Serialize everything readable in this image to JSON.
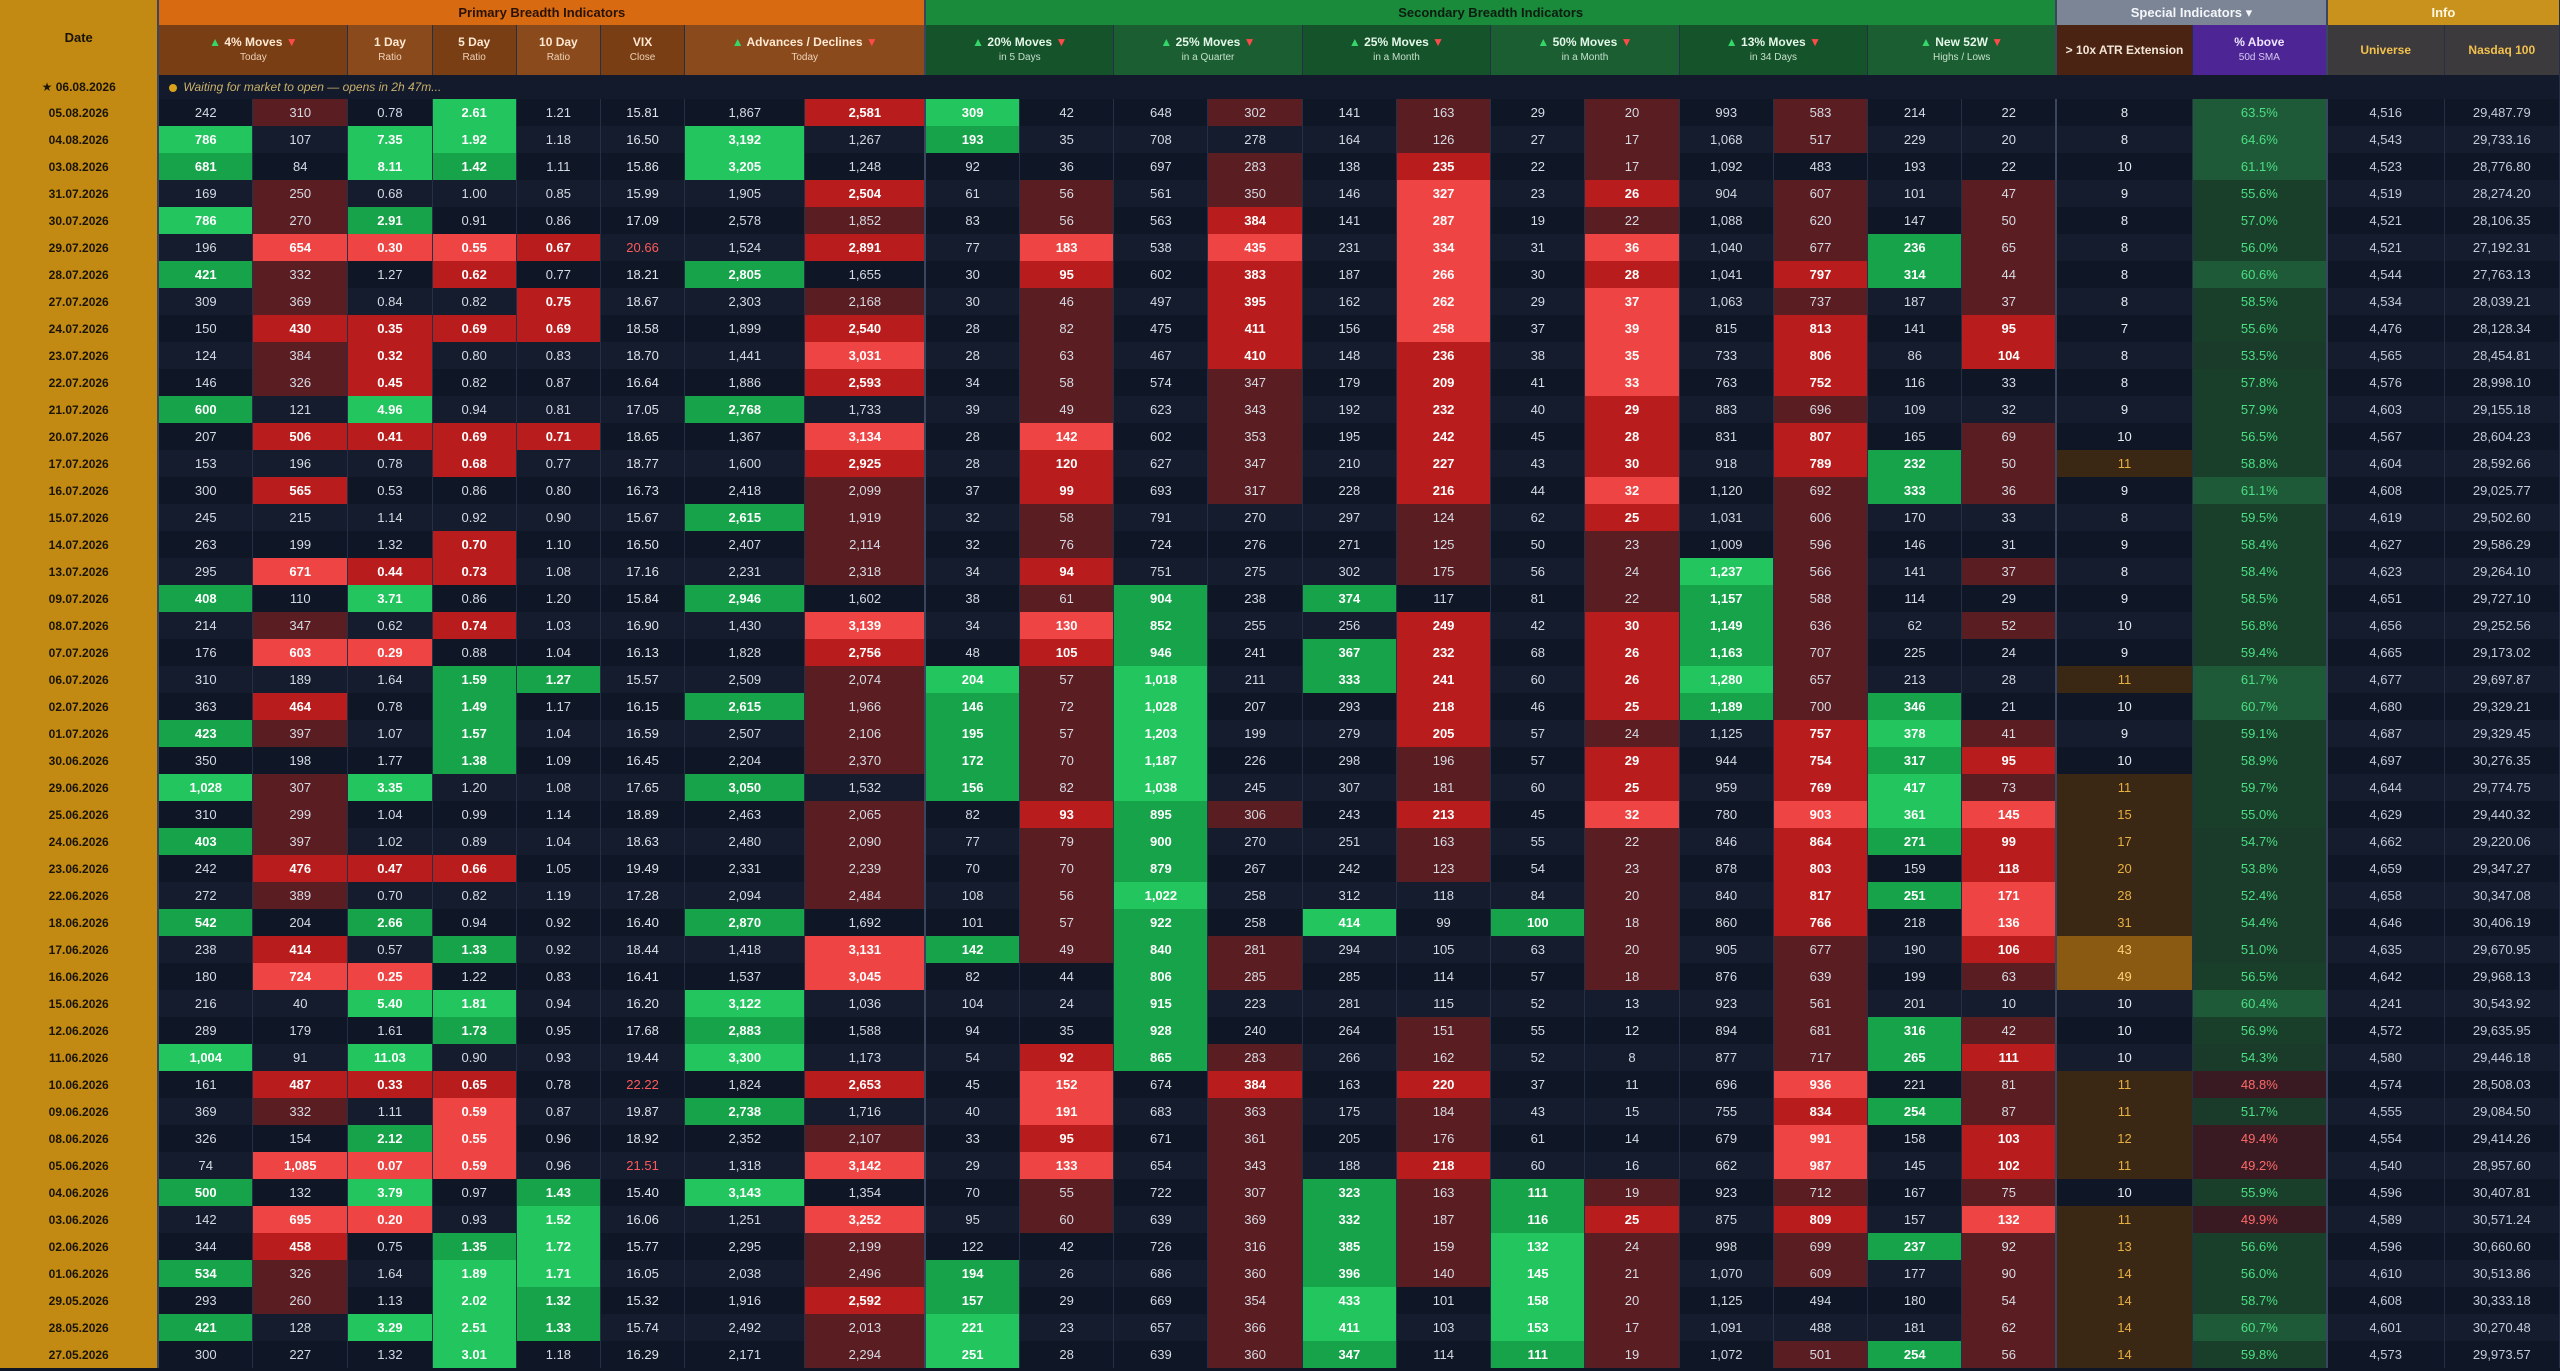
{
  "groups": {
    "date": "Date",
    "primary": "Primary Breadth Indicators",
    "secondary": "Secondary Breadth Indicators",
    "special": "Special Indicators",
    "special_caret": "▾",
    "info": "Info"
  },
  "headers": {
    "moves4": "4% Moves",
    "moves4_sub": "Today",
    "ratio1": "1 Day",
    "ratio1_sub": "Ratio",
    "ratio5": "5 Day",
    "ratio5_sub": "Ratio",
    "ratio10": "10 Day",
    "ratio10_sub": "Ratio",
    "vix": "VIX",
    "vix_sub": "Close",
    "adv": "Advances / Declines",
    "adv_sub": "Today",
    "m20": "20% Moves",
    "m20_sub": "in 5 Days",
    "m25q": "25% Moves",
    "m25q_sub": "in a Quarter",
    "m25m": "25% Moves",
    "m25m_sub": "in a Month",
    "m50": "50% Moves",
    "m50_sub": "in a Month",
    "m13": "13% Moves",
    "m13_sub": "in 34 Days",
    "new52": "New 52W",
    "new52_sub": "Highs / Lows",
    "atr": "> 10x ATR Extension",
    "sma": "% Above",
    "sma_sub": "50d SMA",
    "universe": "Universe",
    "nasdaq": "Nasdaq 100"
  },
  "status": {
    "date": "06.08.2026",
    "star": "★",
    "message": "Waiting for market to open — opens in 2h 47m...",
    "placeholder": "—"
  },
  "colors": {
    "strong_up": "#22c55e",
    "mid_up": "#16a34a",
    "weak_up": "#1e5e34",
    "strong_dn": "#ef4444",
    "mid_dn": "#b91c1c",
    "weak_dn": "#5a1d22",
    "atr_bg": "#3a2714",
    "sma_low": "#1a3a2a",
    "sma_high": "#1f5a38"
  },
  "rows": [
    [
      "05.08.2026",
      "242",
      "310",
      "0.78",
      "2.61",
      "1.21",
      "15.81",
      "1,867",
      "2,581",
      "309",
      "42",
      "648",
      "302",
      "141",
      "163",
      "29",
      "20",
      "993",
      "583",
      "214",
      "22",
      "8",
      "63.5%",
      "4,516",
      "29,487.79"
    ],
    [
      "04.08.2026",
      "786",
      "107",
      "7.35",
      "1.92",
      "1.18",
      "16.50",
      "3,192",
      "1,267",
      "193",
      "35",
      "708",
      "278",
      "164",
      "126",
      "27",
      "17",
      "1,068",
      "517",
      "229",
      "20",
      "8",
      "64.6%",
      "4,543",
      "29,733.16"
    ],
    [
      "03.08.2026",
      "681",
      "84",
      "8.11",
      "1.42",
      "1.11",
      "15.86",
      "3,205",
      "1,248",
      "92",
      "36",
      "697",
      "283",
      "138",
      "235",
      "22",
      "17",
      "1,092",
      "483",
      "193",
      "22",
      "10",
      "61.1%",
      "4,523",
      "28,776.80"
    ],
    [
      "31.07.2026",
      "169",
      "250",
      "0.68",
      "1.00",
      "0.85",
      "15.99",
      "1,905",
      "2,504",
      "61",
      "56",
      "561",
      "350",
      "146",
      "327",
      "23",
      "26",
      "904",
      "607",
      "101",
      "47",
      "9",
      "55.6%",
      "4,519",
      "28,274.20"
    ],
    [
      "30.07.2026",
      "786",
      "270",
      "2.91",
      "0.91",
      "0.86",
      "17.09",
      "2,578",
      "1,852",
      "83",
      "56",
      "563",
      "384",
      "141",
      "287",
      "19",
      "22",
      "1,088",
      "620",
      "147",
      "50",
      "8",
      "57.0%",
      "4,521",
      "28,106.35"
    ],
    [
      "29.07.2026",
      "196",
      "654",
      "0.30",
      "0.55",
      "0.67",
      "20.66",
      "1,524",
      "2,891",
      "77",
      "183",
      "538",
      "435",
      "231",
      "334",
      "31",
      "36",
      "1,040",
      "677",
      "236",
      "65",
      "8",
      "56.0%",
      "4,521",
      "27,192.31"
    ],
    [
      "28.07.2026",
      "421",
      "332",
      "1.27",
      "0.62",
      "0.77",
      "18.21",
      "2,805",
      "1,655",
      "30",
      "95",
      "602",
      "383",
      "187",
      "266",
      "30",
      "28",
      "1,041",
      "797",
      "314",
      "44",
      "8",
      "60.6%",
      "4,544",
      "27,763.13"
    ],
    [
      "27.07.2026",
      "309",
      "369",
      "0.84",
      "0.82",
      "0.75",
      "18.67",
      "2,303",
      "2,168",
      "30",
      "46",
      "497",
      "395",
      "162",
      "262",
      "29",
      "37",
      "1,063",
      "737",
      "187",
      "37",
      "8",
      "58.5%",
      "4,534",
      "28,039.21"
    ],
    [
      "24.07.2026",
      "150",
      "430",
      "0.35",
      "0.69",
      "0.69",
      "18.58",
      "1,899",
      "2,540",
      "28",
      "82",
      "475",
      "411",
      "156",
      "258",
      "37",
      "39",
      "815",
      "813",
      "141",
      "95",
      "7",
      "55.6%",
      "4,476",
      "28,128.34"
    ],
    [
      "23.07.2026",
      "124",
      "384",
      "0.32",
      "0.80",
      "0.83",
      "18.70",
      "1,441",
      "3,031",
      "28",
      "63",
      "467",
      "410",
      "148",
      "236",
      "38",
      "35",
      "733",
      "806",
      "86",
      "104",
      "8",
      "53.5%",
      "4,565",
      "28,454.81"
    ],
    [
      "22.07.2026",
      "146",
      "326",
      "0.45",
      "0.82",
      "0.87",
      "16.64",
      "1,886",
      "2,593",
      "34",
      "58",
      "574",
      "347",
      "179",
      "209",
      "41",
      "33",
      "763",
      "752",
      "116",
      "33",
      "8",
      "57.8%",
      "4,576",
      "28,998.10"
    ],
    [
      "21.07.2026",
      "600",
      "121",
      "4.96",
      "0.94",
      "0.81",
      "17.05",
      "2,768",
      "1,733",
      "39",
      "49",
      "623",
      "343",
      "192",
      "232",
      "40",
      "29",
      "883",
      "696",
      "109",
      "32",
      "9",
      "57.9%",
      "4,603",
      "29,155.18"
    ],
    [
      "20.07.2026",
      "207",
      "506",
      "0.41",
      "0.69",
      "0.71",
      "18.65",
      "1,367",
      "3,134",
      "28",
      "142",
      "602",
      "353",
      "195",
      "242",
      "45",
      "28",
      "831",
      "807",
      "165",
      "69",
      "10",
      "56.5%",
      "4,567",
      "28,604.23"
    ],
    [
      "17.07.2026",
      "153",
      "196",
      "0.78",
      "0.68",
      "0.77",
      "18.77",
      "1,600",
      "2,925",
      "28",
      "120",
      "627",
      "347",
      "210",
      "227",
      "43",
      "30",
      "918",
      "789",
      "232",
      "50",
      "11",
      "58.8%",
      "4,604",
      "28,592.66"
    ],
    [
      "16.07.2026",
      "300",
      "565",
      "0.53",
      "0.86",
      "0.80",
      "16.73",
      "2,418",
      "2,099",
      "37",
      "99",
      "693",
      "317",
      "228",
      "216",
      "44",
      "32",
      "1,120",
      "692",
      "333",
      "36",
      "9",
      "61.1%",
      "4,608",
      "29,025.77"
    ],
    [
      "15.07.2026",
      "245",
      "215",
      "1.14",
      "0.92",
      "0.90",
      "15.67",
      "2,615",
      "1,919",
      "32",
      "58",
      "791",
      "270",
      "297",
      "124",
      "62",
      "25",
      "1,031",
      "606",
      "170",
      "33",
      "8",
      "59.5%",
      "4,619",
      "29,502.60"
    ],
    [
      "14.07.2026",
      "263",
      "199",
      "1.32",
      "0.70",
      "1.10",
      "16.50",
      "2,407",
      "2,114",
      "32",
      "76",
      "724",
      "276",
      "271",
      "125",
      "50",
      "23",
      "1,009",
      "596",
      "146",
      "31",
      "9",
      "58.4%",
      "4,627",
      "29,586.29"
    ],
    [
      "13.07.2026",
      "295",
      "671",
      "0.44",
      "0.73",
      "1.08",
      "17.16",
      "2,231",
      "2,318",
      "34",
      "94",
      "751",
      "275",
      "302",
      "175",
      "56",
      "24",
      "1,237",
      "566",
      "141",
      "37",
      "8",
      "58.4%",
      "4,623",
      "29,264.10"
    ],
    [
      "09.07.2026",
      "408",
      "110",
      "3.71",
      "0.86",
      "1.20",
      "15.84",
      "2,946",
      "1,602",
      "38",
      "61",
      "904",
      "238",
      "374",
      "117",
      "81",
      "22",
      "1,157",
      "588",
      "114",
      "29",
      "9",
      "58.5%",
      "4,651",
      "29,727.10"
    ],
    [
      "08.07.2026",
      "214",
      "347",
      "0.62",
      "0.74",
      "1.03",
      "16.90",
      "1,430",
      "3,139",
      "34",
      "130",
      "852",
      "255",
      "256",
      "249",
      "42",
      "30",
      "1,149",
      "636",
      "62",
      "52",
      "10",
      "56.8%",
      "4,656",
      "29,252.56"
    ],
    [
      "07.07.2026",
      "176",
      "603",
      "0.29",
      "0.88",
      "1.04",
      "16.13",
      "1,828",
      "2,756",
      "48",
      "105",
      "946",
      "241",
      "367",
      "232",
      "68",
      "26",
      "1,163",
      "707",
      "225",
      "24",
      "9",
      "59.4%",
      "4,665",
      "29,173.02"
    ],
    [
      "06.07.2026",
      "310",
      "189",
      "1.64",
      "1.59",
      "1.27",
      "15.57",
      "2,509",
      "2,074",
      "204",
      "57",
      "1,018",
      "211",
      "333",
      "241",
      "60",
      "26",
      "1,280",
      "657",
      "213",
      "28",
      "11",
      "61.7%",
      "4,677",
      "29,697.87"
    ],
    [
      "02.07.2026",
      "363",
      "464",
      "0.78",
      "1.49",
      "1.17",
      "16.15",
      "2,615",
      "1,966",
      "146",
      "72",
      "1,028",
      "207",
      "293",
      "218",
      "46",
      "25",
      "1,189",
      "700",
      "346",
      "21",
      "10",
      "60.7%",
      "4,680",
      "29,329.21"
    ],
    [
      "01.07.2026",
      "423",
      "397",
      "1.07",
      "1.57",
      "1.04",
      "16.59",
      "2,507",
      "2,106",
      "195",
      "57",
      "1,203",
      "199",
      "279",
      "205",
      "57",
      "24",
      "1,125",
      "757",
      "378",
      "41",
      "9",
      "59.1%",
      "4,687",
      "29,329.45"
    ],
    [
      "30.06.2026",
      "350",
      "198",
      "1.77",
      "1.38",
      "1.09",
      "16.45",
      "2,204",
      "2,370",
      "172",
      "70",
      "1,187",
      "226",
      "298",
      "196",
      "57",
      "29",
      "944",
      "754",
      "317",
      "95",
      "10",
      "58.9%",
      "4,697",
      "30,276.35"
    ],
    [
      "29.06.2026",
      "1,028",
      "307",
      "3.35",
      "1.20",
      "1.08",
      "17.65",
      "3,050",
      "1,532",
      "156",
      "82",
      "1,038",
      "245",
      "307",
      "181",
      "60",
      "25",
      "959",
      "769",
      "417",
      "73",
      "11",
      "59.7%",
      "4,644",
      "29,774.75"
    ],
    [
      "25.06.2026",
      "310",
      "299",
      "1.04",
      "0.99",
      "1.14",
      "18.89",
      "2,463",
      "2,065",
      "82",
      "93",
      "895",
      "306",
      "243",
      "213",
      "45",
      "32",
      "780",
      "903",
      "361",
      "145",
      "15",
      "55.0%",
      "4,629",
      "29,440.32"
    ],
    [
      "24.06.2026",
      "403",
      "397",
      "1.02",
      "0.89",
      "1.04",
      "18.63",
      "2,480",
      "2,090",
      "77",
      "79",
      "900",
      "270",
      "251",
      "163",
      "55",
      "22",
      "846",
      "864",
      "271",
      "99",
      "17",
      "54.7%",
      "4,662",
      "29,220.06"
    ],
    [
      "23.06.2026",
      "242",
      "476",
      "0.47",
      "0.66",
      "1.05",
      "19.49",
      "2,331",
      "2,239",
      "70",
      "70",
      "879",
      "267",
      "242",
      "123",
      "54",
      "23",
      "878",
      "803",
      "159",
      "118",
      "20",
      "53.8%",
      "4,659",
      "29,347.27"
    ],
    [
      "22.06.2026",
      "272",
      "389",
      "0.70",
      "0.82",
      "1.19",
      "17.28",
      "2,094",
      "2,484",
      "108",
      "56",
      "1,022",
      "258",
      "312",
      "118",
      "84",
      "20",
      "840",
      "817",
      "251",
      "171",
      "28",
      "52.4%",
      "4,658",
      "30,347.08"
    ],
    [
      "18.06.2026",
      "542",
      "204",
      "2.66",
      "0.94",
      "0.92",
      "16.40",
      "2,870",
      "1,692",
      "101",
      "57",
      "922",
      "258",
      "414",
      "99",
      "100",
      "18",
      "860",
      "766",
      "218",
      "136",
      "31",
      "54.4%",
      "4,646",
      "30,406.19"
    ],
    [
      "17.06.2026",
      "238",
      "414",
      "0.57",
      "1.33",
      "0.92",
      "18.44",
      "1,418",
      "3,131",
      "142",
      "49",
      "840",
      "281",
      "294",
      "105",
      "63",
      "20",
      "905",
      "677",
      "190",
      "106",
      "43",
      "51.0%",
      "4,635",
      "29,670.95"
    ],
    [
      "16.06.2026",
      "180",
      "724",
      "0.25",
      "1.22",
      "0.83",
      "16.41",
      "1,537",
      "3,045",
      "82",
      "44",
      "806",
      "285",
      "285",
      "114",
      "57",
      "18",
      "876",
      "639",
      "199",
      "63",
      "49",
      "56.5%",
      "4,642",
      "29,968.13"
    ],
    [
      "15.06.2026",
      "216",
      "40",
      "5.40",
      "1.81",
      "0.94",
      "16.20",
      "3,122",
      "1,036",
      "104",
      "24",
      "915",
      "223",
      "281",
      "115",
      "52",
      "13",
      "923",
      "561",
      "201",
      "10",
      "10",
      "60.4%",
      "4,241",
      "30,543.92"
    ],
    [
      "12.06.2026",
      "289",
      "179",
      "1.61",
      "1.73",
      "0.95",
      "17.68",
      "2,883",
      "1,588",
      "94",
      "35",
      "928",
      "240",
      "264",
      "151",
      "55",
      "12",
      "894",
      "681",
      "316",
      "42",
      "10",
      "56.9%",
      "4,572",
      "29,635.95"
    ],
    [
      "11.06.2026",
      "1,004",
      "91",
      "11.03",
      "0.90",
      "0.93",
      "19.44",
      "3,300",
      "1,173",
      "54",
      "92",
      "865",
      "283",
      "266",
      "162",
      "52",
      "8",
      "877",
      "717",
      "265",
      "111",
      "10",
      "54.3%",
      "4,580",
      "29,446.18"
    ],
    [
      "10.06.2026",
      "161",
      "487",
      "0.33",
      "0.65",
      "0.78",
      "22.22",
      "1,824",
      "2,653",
      "45",
      "152",
      "674",
      "384",
      "163",
      "220",
      "37",
      "11",
      "696",
      "936",
      "221",
      "81",
      "11",
      "48.8%",
      "4,574",
      "28,508.03"
    ],
    [
      "09.06.2026",
      "369",
      "332",
      "1.11",
      "0.59",
      "0.87",
      "19.87",
      "2,738",
      "1,716",
      "40",
      "191",
      "683",
      "363",
      "175",
      "184",
      "43",
      "15",
      "755",
      "834",
      "254",
      "87",
      "11",
      "51.7%",
      "4,555",
      "29,084.50"
    ],
    [
      "08.06.2026",
      "326",
      "154",
      "2.12",
      "0.55",
      "0.96",
      "18.92",
      "2,352",
      "2,107",
      "33",
      "95",
      "671",
      "361",
      "205",
      "176",
      "61",
      "14",
      "679",
      "991",
      "158",
      "103",
      "12",
      "49.4%",
      "4,554",
      "29,414.26"
    ],
    [
      "05.06.2026",
      "74",
      "1,085",
      "0.07",
      "0.59",
      "0.96",
      "21.51",
      "1,318",
      "3,142",
      "29",
      "133",
      "654",
      "343",
      "188",
      "218",
      "60",
      "16",
      "662",
      "987",
      "145",
      "102",
      "11",
      "49.2%",
      "4,540",
      "28,957.60"
    ],
    [
      "04.06.2026",
      "500",
      "132",
      "3.79",
      "0.97",
      "1.43",
      "15.40",
      "3,143",
      "1,354",
      "70",
      "55",
      "722",
      "307",
      "323",
      "163",
      "111",
      "19",
      "923",
      "712",
      "167",
      "75",
      "10",
      "55.9%",
      "4,596",
      "30,407.81"
    ],
    [
      "03.06.2026",
      "142",
      "695",
      "0.20",
      "0.93",
      "1.52",
      "16.06",
      "1,251",
      "3,252",
      "95",
      "60",
      "639",
      "369",
      "332",
      "187",
      "116",
      "25",
      "875",
      "809",
      "157",
      "132",
      "11",
      "49.9%",
      "4,589",
      "30,571.24"
    ],
    [
      "02.06.2026",
      "344",
      "458",
      "0.75",
      "1.35",
      "1.72",
      "15.77",
      "2,295",
      "2,199",
      "122",
      "42",
      "726",
      "316",
      "385",
      "159",
      "132",
      "24",
      "998",
      "699",
      "237",
      "92",
      "13",
      "56.6%",
      "4,596",
      "30,660.60"
    ],
    [
      "01.06.2026",
      "534",
      "326",
      "1.64",
      "1.89",
      "1.71",
      "16.05",
      "2,038",
      "2,496",
      "194",
      "26",
      "686",
      "360",
      "396",
      "140",
      "145",
      "21",
      "1,070",
      "609",
      "177",
      "90",
      "14",
      "56.0%",
      "4,610",
      "30,513.86"
    ],
    [
      "29.05.2026",
      "293",
      "260",
      "1.13",
      "2.02",
      "1.32",
      "15.32",
      "1,916",
      "2,592",
      "157",
      "29",
      "669",
      "354",
      "433",
      "101",
      "158",
      "20",
      "1,125",
      "494",
      "180",
      "54",
      "14",
      "58.7%",
      "4,608",
      "30,333.18"
    ],
    [
      "28.05.2026",
      "421",
      "128",
      "3.29",
      "2.51",
      "1.33",
      "15.74",
      "2,492",
      "2,013",
      "221",
      "23",
      "657",
      "366",
      "411",
      "103",
      "153",
      "17",
      "1,091",
      "488",
      "181",
      "62",
      "14",
      "60.7%",
      "4,601",
      "30,270.48"
    ],
    [
      "27.05.2026",
      "300",
      "227",
      "1.32",
      "3.01",
      "1.18",
      "16.29",
      "2,171",
      "2,294",
      "251",
      "28",
      "639",
      "360",
      "347",
      "114",
      "111",
      "19",
      "1,072",
      "501",
      "254",
      "56",
      "14",
      "59.8%",
      "4,573",
      "29,973.57"
    ]
  ]
}
